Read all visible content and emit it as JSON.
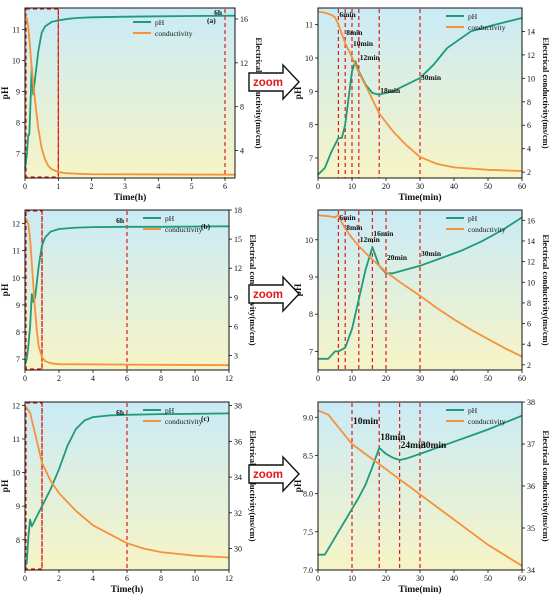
{
  "colors": {
    "pH": "#1f9a7a",
    "conductivity": "#f5923a",
    "marker": "#e01a1a",
    "bg_top": "#c9ebf6",
    "bg_bottom": "#f7f4c6"
  },
  "zoom_label": "zoom",
  "chart_data": [
    {
      "id": "a_full",
      "type": "line",
      "panel": "(a)",
      "xlabel": "Time(h)",
      "ylabel_left": "pH",
      "ylabel_right": "Electrical conductivity(ms/cm)",
      "xlim": [
        0,
        6.3
      ],
      "xticks": [
        0,
        1,
        2,
        3,
        4,
        5,
        6
      ],
      "ylim_left": [
        6.2,
        11.7
      ],
      "yticks_left": [
        7,
        8,
        9,
        10,
        11
      ],
      "ylim_right": [
        1.5,
        17
      ],
      "yticks_right": [
        4,
        8,
        12,
        16
      ],
      "legend": [
        "pH",
        "conductivity"
      ],
      "markers": [
        {
          "x": 1,
          "label": ""
        },
        {
          "x": 6,
          "label": "6h"
        }
      ],
      "box": {
        "x0": 0,
        "x1": 1
      },
      "series": [
        {
          "name": "pH",
          "axis": "left",
          "x": [
            0,
            0.05,
            0.1,
            0.13,
            0.17,
            0.2,
            0.25,
            0.3,
            0.4,
            0.5,
            0.6,
            0.8,
            1,
            1.3,
            1.6,
            2,
            3,
            4,
            5,
            6.3
          ],
          "y": [
            6.5,
            6.9,
            7.6,
            7.6,
            8.8,
            9.8,
            8.9,
            9.4,
            10.3,
            10.9,
            11.1,
            11.25,
            11.3,
            11.35,
            11.38,
            11.4,
            11.42,
            11.43,
            11.44,
            11.45
          ]
        },
        {
          "name": "conductivity",
          "axis": "right",
          "x": [
            0,
            0.05,
            0.1,
            0.15,
            0.2,
            0.3,
            0.4,
            0.5,
            0.6,
            0.7,
            0.8,
            1,
            1.2,
            1.5,
            2,
            6.3
          ],
          "y": [
            16.3,
            16.1,
            15.2,
            13.5,
            11.5,
            8.6,
            6.0,
            4.2,
            3.2,
            2.6,
            2.3,
            2.05,
            1.95,
            1.9,
            1.85,
            1.8
          ]
        }
      ]
    },
    {
      "id": "a_zoom",
      "type": "line",
      "xlabel": "Time(min)",
      "ylabel_left": "pH",
      "ylabel_right": "Electrical conductivity(ms/cm)",
      "xlim": [
        0,
        60
      ],
      "xticks": [
        0,
        10,
        20,
        30,
        40,
        50,
        60
      ],
      "ylim_left": [
        6.4,
        11.5
      ],
      "yticks_left": [
        7,
        8,
        9,
        10,
        11
      ],
      "ylim_right": [
        1.5,
        16
      ],
      "yticks_right": [
        2,
        4,
        6,
        8,
        10,
        12,
        14
      ],
      "legend": [
        "pH",
        "conductivity"
      ],
      "markers": [
        {
          "x": 6,
          "label": "6min"
        },
        {
          "x": 8,
          "label": "8min"
        },
        {
          "x": 10,
          "label": "10min"
        },
        {
          "x": 12,
          "label": "12min"
        },
        {
          "x": 18,
          "label": "18min"
        },
        {
          "x": 30,
          "label": "30min"
        }
      ],
      "series": [
        {
          "name": "pH",
          "axis": "left",
          "x": [
            0,
            2,
            4,
            5,
            6,
            7,
            8,
            9,
            10,
            11,
            12,
            14,
            16,
            18,
            22,
            26,
            30,
            34,
            38,
            45,
            52,
            60
          ],
          "y": [
            6.5,
            6.7,
            7.2,
            7.4,
            7.6,
            7.6,
            8.0,
            8.8,
            9.6,
            9.9,
            9.6,
            9.2,
            8.95,
            8.9,
            9.0,
            9.2,
            9.4,
            9.8,
            10.3,
            10.8,
            11.0,
            11.2
          ]
        },
        {
          "name": "conductivity",
          "axis": "right",
          "x": [
            0,
            2,
            4,
            5,
            6,
            7,
            8,
            10,
            12,
            15,
            18,
            22,
            26,
            30,
            35,
            40,
            50,
            60
          ],
          "y": [
            15.7,
            15.6,
            15.4,
            15.2,
            14.6,
            13.8,
            13.0,
            11.8,
            10.5,
            8.8,
            7.0,
            5.5,
            4.3,
            3.3,
            2.7,
            2.4,
            2.2,
            2.1
          ]
        }
      ]
    },
    {
      "id": "b_full",
      "type": "line",
      "panel": "(b)",
      "xlabel": "",
      "ylabel_left": "pH",
      "ylabel_right": "Electrical conductivity(ms/cm)",
      "xlim": [
        0,
        12
      ],
      "xticks": [
        0,
        2,
        4,
        6,
        8,
        10,
        12
      ],
      "ylim_left": [
        6.6,
        12.5
      ],
      "yticks_left": [
        7,
        8,
        9,
        10,
        11,
        12
      ],
      "ylim_right": [
        1.5,
        18
      ],
      "yticks_right": [
        3,
        6,
        9,
        12,
        15,
        18
      ],
      "legend": [
        "pH",
        "conductivity"
      ],
      "markers": [
        {
          "x": 1,
          "label": ""
        },
        {
          "x": 6,
          "label": "6h"
        }
      ],
      "box": {
        "x0": 0,
        "x1": 1
      },
      "series": [
        {
          "name": "pH",
          "axis": "left",
          "x": [
            0,
            0.1,
            0.2,
            0.3,
            0.4,
            0.5,
            0.6,
            0.8,
            1,
            1.2,
            1.5,
            2,
            3,
            4,
            6,
            8,
            10,
            12
          ],
          "y": [
            6.8,
            7.0,
            7.5,
            8.2,
            9.4,
            9.1,
            9.3,
            10.4,
            11.2,
            11.5,
            11.7,
            11.8,
            11.85,
            11.87,
            11.88,
            11.88,
            11.89,
            11.9
          ]
        },
        {
          "name": "conductivity",
          "axis": "right",
          "x": [
            0,
            0.1,
            0.2,
            0.3,
            0.4,
            0.5,
            0.6,
            0.7,
            0.8,
            1,
            1.2,
            1.5,
            2,
            12
          ],
          "y": [
            17.2,
            17.0,
            16.5,
            15.0,
            12.5,
            10.0,
            7.5,
            5.5,
            4.0,
            2.8,
            2.4,
            2.2,
            2.1,
            2.0
          ]
        }
      ]
    },
    {
      "id": "b_zoom",
      "type": "line",
      "xlabel": "",
      "ylabel_left": "pH",
      "ylabel_right": "Electrical conductivity(ms/cm)",
      "xlim": [
        0,
        60
      ],
      "xticks": [
        0,
        10,
        20,
        30,
        40,
        50,
        60
      ],
      "ylim_left": [
        6.5,
        10.8
      ],
      "yticks_left": [
        7,
        8,
        9,
        10
      ],
      "ylim_right": [
        1.5,
        17
      ],
      "yticks_right": [
        2,
        4,
        6,
        8,
        10,
        12,
        14,
        16
      ],
      "legend": [
        "pH",
        "conductivity"
      ],
      "markers": [
        {
          "x": 6,
          "label": "6min"
        },
        {
          "x": 8,
          "label": "8min"
        },
        {
          "x": 12,
          "label": "12min"
        },
        {
          "x": 16,
          "label": "16min"
        },
        {
          "x": 20,
          "label": "20min"
        },
        {
          "x": 30,
          "label": "30min"
        }
      ],
      "series": [
        {
          "name": "pH",
          "axis": "left",
          "x": [
            0,
            3,
            5,
            6,
            8,
            10,
            12,
            14,
            16,
            18,
            20,
            22,
            26,
            30,
            36,
            42,
            48,
            54,
            60
          ],
          "y": [
            6.8,
            6.8,
            7.0,
            7.0,
            7.1,
            7.6,
            8.4,
            9.2,
            9.8,
            9.3,
            9.1,
            9.1,
            9.2,
            9.3,
            9.5,
            9.7,
            9.95,
            10.25,
            10.6
          ]
        },
        {
          "name": "conductivity",
          "axis": "right",
          "x": [
            0,
            3,
            5,
            6,
            7,
            8,
            10,
            12,
            15,
            20,
            25,
            30,
            35,
            40,
            45,
            50,
            55,
            60
          ],
          "y": [
            16.5,
            16.4,
            16.3,
            16.5,
            15.8,
            15.2,
            14.3,
            13.5,
            12.5,
            11.0,
            9.8,
            8.7,
            7.5,
            6.4,
            5.4,
            4.5,
            3.6,
            2.8
          ]
        }
      ]
    },
    {
      "id": "c_full",
      "type": "line",
      "panel": "(c)",
      "xlabel": "Time(h)",
      "ylabel_left": "pH",
      "ylabel_right": "Electrical conductivity(ms/cm)",
      "xlim": [
        0,
        12
      ],
      "xticks": [
        0,
        2,
        4,
        6,
        8,
        10,
        12
      ],
      "ylim_left": [
        7.1,
        12.1
      ],
      "yticks_left": [
        8,
        9,
        10,
        11,
        12
      ],
      "ylim_right": [
        28.8,
        38.2
      ],
      "yticks_right": [
        30,
        32,
        34,
        36,
        38
      ],
      "legend": [
        "pH",
        "conductivity"
      ],
      "markers": [
        {
          "x": 1,
          "label": ""
        },
        {
          "x": 6,
          "label": "6h"
        }
      ],
      "box": {
        "x0": 0,
        "x1": 1
      },
      "series": [
        {
          "name": "pH",
          "axis": "left",
          "x": [
            0,
            0.1,
            0.2,
            0.3,
            0.4,
            0.6,
            0.8,
            1,
            1.5,
            2,
            2.5,
            3,
            3.5,
            4,
            5,
            6,
            8,
            10,
            12
          ],
          "y": [
            7.2,
            7.3,
            8.1,
            8.6,
            8.4,
            8.6,
            8.8,
            9.0,
            9.5,
            10.1,
            10.8,
            11.3,
            11.55,
            11.65,
            11.7,
            11.72,
            11.74,
            11.75,
            11.76
          ]
        },
        {
          "name": "conductivity",
          "axis": "right",
          "x": [
            0,
            0.3,
            0.6,
            1,
            1.5,
            2,
            3,
            4,
            5,
            6,
            7,
            8,
            9,
            10,
            11,
            12
          ],
          "y": [
            38.0,
            37.6,
            36.4,
            34.8,
            33.8,
            33.1,
            32.1,
            31.3,
            30.8,
            30.3,
            30.0,
            29.8,
            29.7,
            29.6,
            29.55,
            29.5
          ]
        }
      ]
    },
    {
      "id": "c_zoom",
      "type": "line",
      "xlabel": "Time(min)",
      "ylabel_left": "pH",
      "ylabel_right": "Electrical conductivity(ms/cm)",
      "xlim": [
        0,
        60
      ],
      "xticks": [
        0,
        10,
        20,
        30,
        40,
        50,
        60
      ],
      "ylim_left": [
        7.0,
        9.2
      ],
      "yticks_left": [
        7.0,
        7.5,
        8.0,
        8.5,
        9.0
      ],
      "ylim_right": [
        34,
        38
      ],
      "yticks_right": [
        34,
        35,
        36,
        37,
        38
      ],
      "legend": [
        "pH",
        "conductivity"
      ],
      "markers": [
        {
          "x": 10,
          "label": "10min"
        },
        {
          "x": 18,
          "label": "18min"
        },
        {
          "x": 24,
          "label": "24min"
        },
        {
          "x": 30,
          "label": "30min"
        }
      ],
      "series": [
        {
          "name": "pH",
          "axis": "left",
          "x": [
            0,
            2,
            4,
            6,
            8,
            10,
            12,
            14,
            16,
            18,
            20,
            22,
            24,
            26,
            28,
            30,
            35,
            40,
            45,
            50,
            55,
            60
          ],
          "y": [
            7.2,
            7.2,
            7.35,
            7.5,
            7.65,
            7.8,
            7.95,
            8.12,
            8.35,
            8.6,
            8.52,
            8.47,
            8.44,
            8.46,
            8.49,
            8.52,
            8.6,
            8.68,
            8.76,
            8.84,
            8.93,
            9.02
          ]
        },
        {
          "name": "conductivity",
          "axis": "right",
          "x": [
            0,
            3,
            6,
            10,
            15,
            20,
            25,
            30,
            35,
            40,
            45,
            50,
            55,
            60
          ],
          "y": [
            37.8,
            37.7,
            37.4,
            37.0,
            36.7,
            36.4,
            36.1,
            35.8,
            35.5,
            35.2,
            34.9,
            34.6,
            34.35,
            34.1
          ]
        }
      ]
    }
  ]
}
